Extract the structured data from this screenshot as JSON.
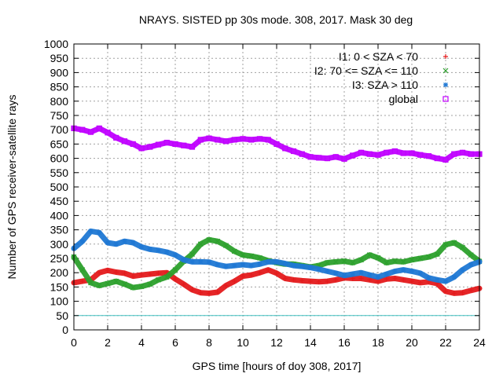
{
  "chart_data": {
    "type": "scatter",
    "title": "NRAYS. SISTED pp 30s mode. 308, 2017. Mask 30 deg",
    "xlabel": "GPS time [hours of doy 308, 2017]",
    "ylabel": "Number of GPS receiver-satellite rays",
    "xlim": [
      0,
      24
    ],
    "ylim": [
      0,
      1000
    ],
    "xticks": [
      0,
      2,
      4,
      6,
      8,
      10,
      12,
      14,
      16,
      18,
      20,
      22,
      24
    ],
    "yticks": [
      0,
      50,
      100,
      150,
      200,
      250,
      300,
      350,
      400,
      450,
      500,
      550,
      600,
      650,
      700,
      750,
      800,
      850,
      900,
      950,
      1000
    ],
    "grid": true,
    "legend_position": "top-right",
    "reference_line": {
      "y": 50,
      "color": "#40c0c0"
    },
    "series": [
      {
        "name": "I1: 0 < SZA < 70",
        "marker": "+",
        "color": "#e41a1c",
        "x": [
          0,
          0.5,
          1,
          1.5,
          2,
          2.5,
          3,
          3.5,
          4,
          4.5,
          5,
          5.5,
          6,
          6.5,
          7,
          7.5,
          8,
          8.5,
          9,
          9.5,
          10,
          10.5,
          11,
          11.5,
          12,
          12.5,
          13,
          13.5,
          14,
          14.5,
          15,
          15.5,
          16,
          16.5,
          17,
          17.5,
          18,
          18.5,
          19,
          19.5,
          20,
          20.5,
          21,
          21.5,
          22,
          22.5,
          23,
          23.5,
          24
        ],
        "y": [
          165,
          170,
          175,
          200,
          208,
          202,
          198,
          188,
          192,
          195,
          198,
          200,
          178,
          160,
          140,
          130,
          128,
          132,
          155,
          170,
          188,
          192,
          200,
          210,
          198,
          180,
          175,
          172,
          170,
          168,
          170,
          175,
          182,
          180,
          180,
          175,
          170,
          178,
          180,
          175,
          170,
          165,
          168,
          162,
          135,
          128,
          130,
          138,
          145
        ]
      },
      {
        "name": "I2: 70 <= SZA <= 110",
        "marker": "x",
        "color": "#2ca02c",
        "x": [
          0,
          0.5,
          1,
          1.5,
          2,
          2.5,
          3,
          3.5,
          4,
          4.5,
          5,
          5.5,
          6,
          6.5,
          7,
          7.5,
          8,
          8.5,
          9,
          9.5,
          10,
          10.5,
          11,
          11.5,
          12,
          12.5,
          13,
          13.5,
          14,
          14.5,
          15,
          15.5,
          16,
          16.5,
          17,
          17.5,
          18,
          18.5,
          19,
          19.5,
          20,
          20.5,
          21,
          21.5,
          22,
          22.5,
          23,
          23.5,
          24
        ],
        "y": [
          255,
          210,
          165,
          155,
          162,
          170,
          160,
          148,
          152,
          160,
          175,
          185,
          210,
          240,
          265,
          300,
          315,
          310,
          295,
          275,
          262,
          258,
          252,
          242,
          235,
          230,
          230,
          225,
          220,
          225,
          235,
          238,
          240,
          235,
          245,
          262,
          252,
          235,
          240,
          238,
          245,
          250,
          255,
          265,
          298,
          305,
          288,
          262,
          240
        ]
      },
      {
        "name": "I3: SZA > 110",
        "marker": "*",
        "color": "#1f78d4",
        "x": [
          0,
          0.5,
          1,
          1.5,
          2,
          2.5,
          3,
          3.5,
          4,
          4.5,
          5,
          5.5,
          6,
          6.5,
          7,
          7.5,
          8,
          8.5,
          9,
          9.5,
          10,
          10.5,
          11,
          11.5,
          12,
          12.5,
          13,
          13.5,
          14,
          14.5,
          15,
          15.5,
          16,
          16.5,
          17,
          17.5,
          18,
          18.5,
          19,
          19.5,
          20,
          20.5,
          21,
          21.5,
          22,
          22.5,
          23,
          23.5,
          24
        ],
        "y": [
          285,
          310,
          345,
          340,
          305,
          300,
          310,
          305,
          290,
          282,
          278,
          272,
          262,
          245,
          238,
          238,
          237,
          228,
          222,
          225,
          228,
          225,
          230,
          238,
          238,
          232,
          225,
          222,
          218,
          212,
          205,
          198,
          190,
          195,
          200,
          192,
          185,
          195,
          205,
          210,
          205,
          198,
          182,
          175,
          170,
          185,
          210,
          228,
          238
        ]
      },
      {
        "name": "global",
        "marker": "square",
        "color": "#c000ff",
        "x": [
          0,
          0.5,
          1,
          1.5,
          2,
          2.5,
          3,
          3.5,
          4,
          4.5,
          5,
          5.5,
          6,
          6.5,
          7,
          7.5,
          8,
          8.5,
          9,
          9.5,
          10,
          10.5,
          11,
          11.5,
          12,
          12.5,
          13,
          13.5,
          14,
          14.5,
          15,
          15.5,
          16,
          16.5,
          17,
          17.5,
          18,
          18.5,
          19,
          19.5,
          20,
          20.5,
          21,
          21.5,
          22,
          22.5,
          23,
          23.5,
          24
        ],
        "y": [
          705,
          700,
          692,
          705,
          690,
          672,
          660,
          650,
          635,
          640,
          648,
          655,
          650,
          645,
          640,
          665,
          670,
          665,
          660,
          665,
          668,
          665,
          668,
          665,
          650,
          635,
          625,
          615,
          605,
          602,
          600,
          605,
          598,
          610,
          620,
          615,
          612,
          620,
          625,
          618,
          618,
          612,
          608,
          600,
          595,
          615,
          620,
          615,
          615
        ]
      }
    ]
  }
}
